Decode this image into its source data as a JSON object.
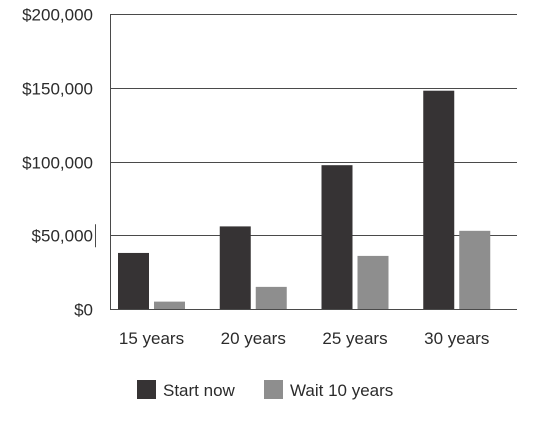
{
  "chart_data": {
    "type": "bar",
    "title": "",
    "xlabel": "",
    "ylabel": "",
    "categories": [
      "15 years",
      "20 years",
      "25 years",
      "30 years"
    ],
    "series": [
      {
        "name": "Start now",
        "color": "#363334",
        "values": [
          38000,
          56000,
          97500,
          148000
        ]
      },
      {
        "name": "Wait 10 years",
        "color": "#8e8e8e",
        "values": [
          5000,
          15000,
          36000,
          53000
        ]
      }
    ],
    "ylim": [
      0,
      200000
    ],
    "yticks": [
      0,
      50000,
      100000,
      150000,
      200000
    ],
    "ytick_labels": [
      "$0",
      "$50,000",
      "$100,000",
      "$150,000",
      "$200,000"
    ],
    "grid": true,
    "legend_position": "bottom-center"
  }
}
